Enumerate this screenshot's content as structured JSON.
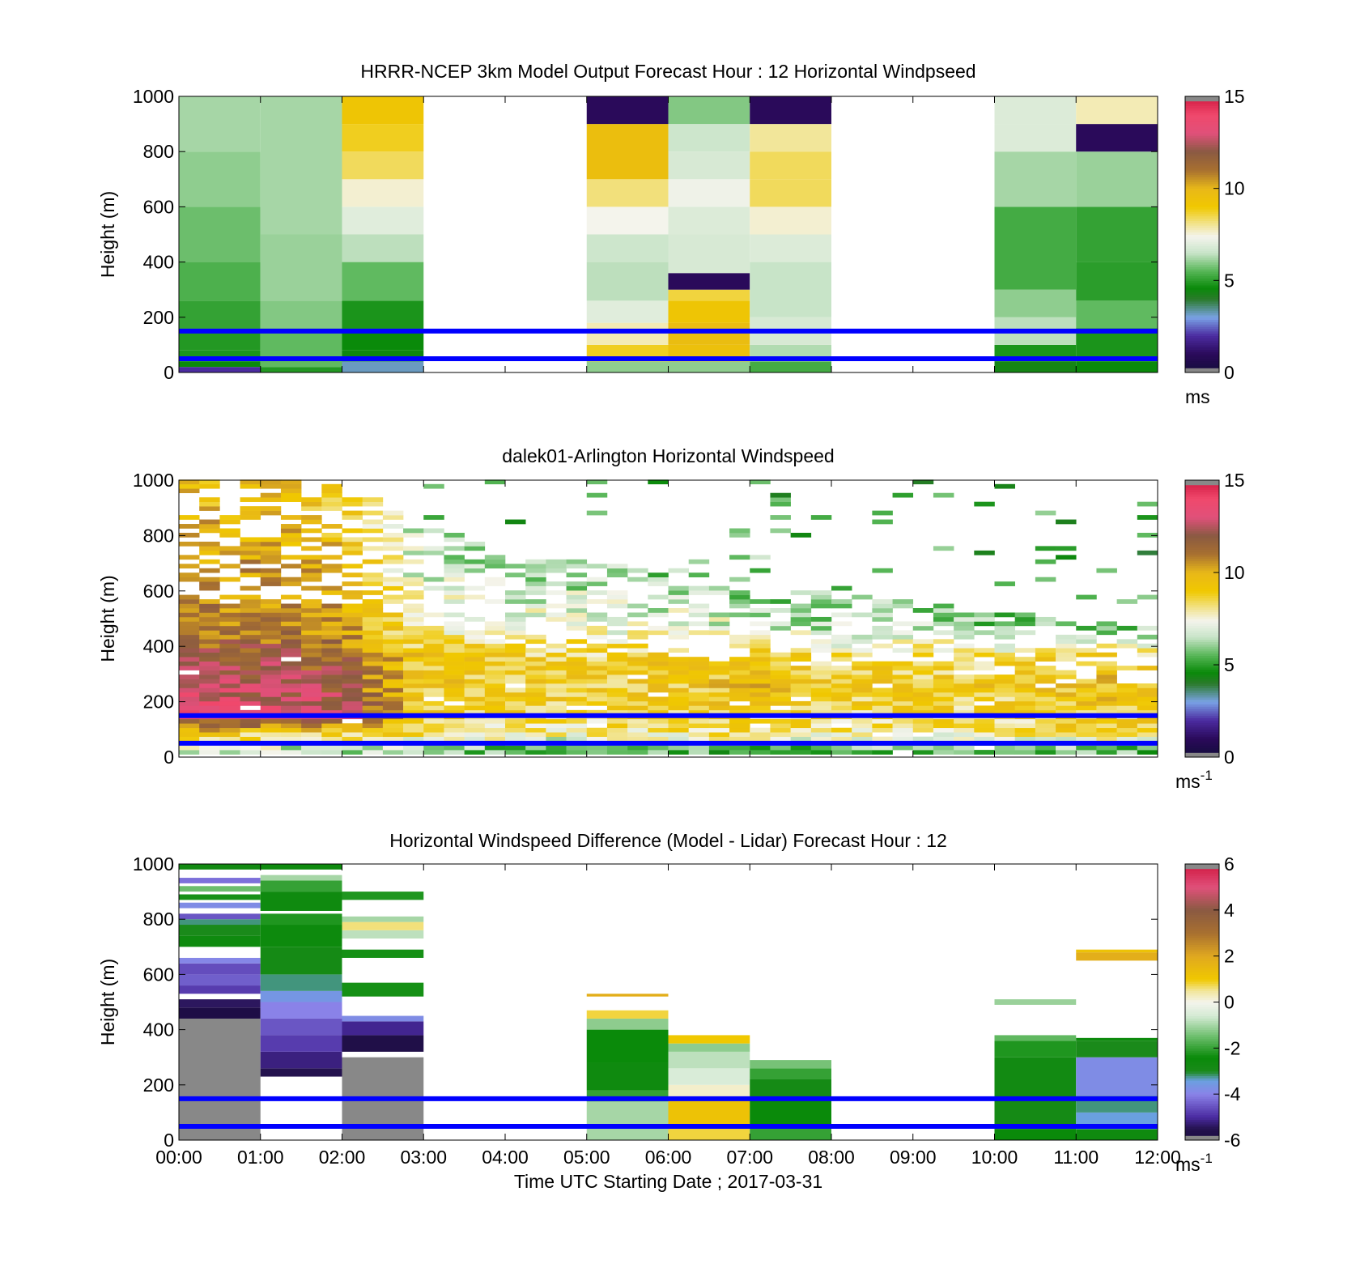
{
  "figure": {
    "xlabel": "Time UTC  Starting Date ; 2017-03-31",
    "x_ticks": [
      "00:00",
      "01:00",
      "02:00",
      "03:00",
      "04:00",
      "05:00",
      "06:00",
      "07:00",
      "08:00",
      "09:00",
      "10:00",
      "11:00",
      "12:00"
    ],
    "y_ticks": [
      "0",
      "200",
      "400",
      "600",
      "800",
      "1000"
    ],
    "ylabel": "Height (m)",
    "reference_lines_m": [
      50,
      150
    ],
    "reference_line_color": "#0000ff"
  },
  "chart_data": [
    {
      "id": "model",
      "type": "heatmap",
      "title": "HRRR-NCEP 3km Model Output   Forecast Hour : 12 Horizontal Windpseed",
      "xlabel": "",
      "ylabel": "Height (m)",
      "xlim_hours": [
        0,
        12
      ],
      "ylim": [
        0,
        1000
      ],
      "colorbar": {
        "ticks": [
          "0",
          "5",
          "10",
          "15"
        ],
        "min": 0,
        "max": 15,
        "unit": "ms",
        "colormap": "windspeed"
      },
      "columns": [
        {
          "start": 0,
          "end": 1,
          "layers": [
            [
              0,
              20,
              2
            ],
            [
              20,
              40,
              4.6
            ],
            [
              40,
              80,
              4.8
            ],
            [
              80,
              160,
              4.9
            ],
            [
              160,
              260,
              5.1
            ],
            [
              260,
              400,
              5.4
            ],
            [
              400,
              600,
              5.7
            ],
            [
              600,
              800,
              6.0
            ],
            [
              800,
              1000,
              6.2
            ]
          ]
        },
        {
          "start": 1,
          "end": 2,
          "layers": [
            [
              0,
              20,
              4.9
            ],
            [
              20,
              160,
              5.6
            ],
            [
              160,
              260,
              5.9
            ],
            [
              260,
              500,
              6.1
            ],
            [
              500,
              1000,
              6.2
            ]
          ]
        },
        {
          "start": 2,
          "end": 3,
          "layers": [
            [
              0,
              40,
              3.2
            ],
            [
              40,
              80,
              4.5
            ],
            [
              80,
              160,
              4.6
            ],
            [
              160,
              260,
              4.8
            ],
            [
              260,
              400,
              5.6
            ],
            [
              400,
              500,
              6.4
            ],
            [
              500,
              600,
              7.0
            ],
            [
              600,
              700,
              7.6
            ],
            [
              700,
              800,
              8.4
            ],
            [
              800,
              900,
              8.8
            ],
            [
              900,
              1000,
              9.2
            ]
          ]
        },
        {
          "start": 5,
          "end": 6,
          "layers": [
            [
              0,
              40,
              6.0
            ],
            [
              40,
              100,
              8.8
            ],
            [
              100,
              180,
              7.8
            ],
            [
              180,
              260,
              7.0
            ],
            [
              260,
              400,
              6.4
            ],
            [
              400,
              500,
              6.6
            ],
            [
              500,
              600,
              7.4
            ],
            [
              600,
              700,
              8.2
            ],
            [
              700,
              900,
              9.6
            ],
            [
              900,
              1000,
              1.0
            ]
          ]
        },
        {
          "start": 6,
          "end": 7,
          "layers": [
            [
              0,
              40,
              6.0
            ],
            [
              40,
              100,
              9.5
            ],
            [
              100,
              180,
              9.7
            ],
            [
              180,
              260,
              9.2
            ],
            [
              260,
              300,
              8.6
            ],
            [
              300,
              360,
              1.0
            ],
            [
              360,
              500,
              6.8
            ],
            [
              500,
              600,
              6.9
            ],
            [
              600,
              700,
              7.3
            ],
            [
              700,
              800,
              6.8
            ],
            [
              800,
              900,
              6.6
            ],
            [
              900,
              1000,
              5.9
            ]
          ]
        },
        {
          "start": 7,
          "end": 8,
          "layers": [
            [
              0,
              40,
              5.3
            ],
            [
              40,
              100,
              6.3
            ],
            [
              100,
              200,
              6.8
            ],
            [
              200,
              400,
              6.5
            ],
            [
              400,
              500,
              6.9
            ],
            [
              500,
              600,
              7.6
            ],
            [
              600,
              700,
              8.4
            ],
            [
              700,
              800,
              8.4
            ],
            [
              800,
              900,
              8.0
            ],
            [
              900,
              1000,
              1.0
            ]
          ]
        },
        {
          "start": 10,
          "end": 11,
          "layers": [
            [
              0,
              40,
              4.4
            ],
            [
              40,
              100,
              4.8
            ],
            [
              100,
              200,
              6.4
            ],
            [
              200,
              300,
              6.0
            ],
            [
              300,
              600,
              5.3
            ],
            [
              600,
              800,
              6.2
            ],
            [
              800,
              900,
              6.9
            ],
            [
              900,
              1000,
              6.9
            ]
          ]
        },
        {
          "start": 11,
          "end": 12,
          "layers": [
            [
              0,
              40,
              4.6
            ],
            [
              40,
              160,
              4.8
            ],
            [
              160,
              260,
              5.6
            ],
            [
              260,
              400,
              5.0
            ],
            [
              400,
              600,
              5.1
            ],
            [
              600,
              800,
              6.1
            ],
            [
              800,
              900,
              1.0
            ],
            [
              900,
              1000,
              7.8
            ]
          ]
        }
      ]
    },
    {
      "id": "lidar",
      "type": "heatmap",
      "title": "dalek01-Arlington  Horizontal Windspeed",
      "xlabel": "",
      "ylabel": "Height (m)",
      "xlim_hours": [
        0,
        12
      ],
      "ylim": [
        0,
        1000
      ],
      "colorbar": {
        "ticks": [
          "0",
          "5",
          "10",
          "15"
        ],
        "min": 0,
        "max": 15,
        "unit": "ms-1",
        "colormap": "windspeed"
      },
      "profile_hours": [
        0,
        1,
        2,
        3,
        4,
        5,
        6,
        7,
        8,
        9,
        10,
        11,
        11.85
      ],
      "profile_windspeed": [
        [
          6.5,
          9,
          13.5,
          13,
          12,
          11,
          10.5,
          10,
          9.5
        ],
        [
          6.5,
          9,
          13,
          12.5,
          12,
          11,
          10.5,
          10,
          9.5
        ],
        [
          6.5,
          9,
          13,
          12,
          11.5,
          10.5,
          10,
          9.5,
          9
        ],
        [
          6,
          8.5,
          8.8,
          9,
          9,
          8,
          7,
          6,
          5.5
        ],
        [
          5.5,
          8,
          8.5,
          9,
          9,
          8,
          6.5,
          5.5,
          5
        ],
        [
          5.5,
          8,
          8.5,
          9,
          8.5,
          7.5,
          6.5,
          5.5,
          5
        ],
        [
          5.5,
          8,
          8.5,
          9,
          9,
          7.5,
          6,
          5.5,
          5
        ],
        [
          5.5,
          8.5,
          9,
          9.5,
          9,
          7,
          6,
          5.5,
          5
        ],
        [
          5.5,
          8,
          8.5,
          9,
          8.5,
          6.5,
          5.5,
          5,
          5
        ],
        [
          5.5,
          8,
          8.5,
          9,
          8.5,
          6.5,
          5.5,
          5,
          5
        ],
        [
          5.5,
          8,
          8.5,
          9,
          8.5,
          6,
          5,
          5,
          5
        ],
        [
          5.5,
          8.5,
          9,
          9.5,
          9,
          6,
          5,
          5,
          5
        ],
        [
          5.5,
          8.5,
          9,
          9.5,
          9,
          6,
          5,
          5,
          5
        ]
      ],
      "profile_heights_m": [
        20,
        80,
        140,
        250,
        350,
        450,
        600,
        800,
        950
      ],
      "max_height_by_hour": [
        1000,
        1000,
        1000,
        880,
        720,
        700,
        660,
        580,
        600,
        560,
        520,
        500,
        460
      ]
    },
    {
      "id": "difference",
      "type": "heatmap",
      "title": "Horizontal Windspeed Difference (Model - Lidar) Forecast Hour : 12",
      "xlabel": "Time UTC  Starting Date ; 2017-03-31",
      "ylabel": "Height (m)",
      "xlim_hours": [
        0,
        12
      ],
      "ylim": [
        0,
        1000
      ],
      "colorbar": {
        "ticks": [
          "-6",
          "-4",
          "-2",
          "0",
          "2",
          "4",
          "6"
        ],
        "min": -6,
        "max": 6,
        "unit": "ms-1",
        "colormap": "difference"
      },
      "columns": [
        {
          "start": 0,
          "end": 1,
          "layers": [
            [
              0,
              440,
              -7
            ],
            [
              440,
              480,
              -5.8
            ],
            [
              480,
              510,
              -5.4
            ],
            [
              530,
              560,
              -4.8
            ],
            [
              560,
              600,
              -4.4
            ],
            [
              600,
              640,
              -4.6
            ],
            [
              640,
              660,
              -3.9
            ],
            [
              700,
              740,
              -2.6
            ],
            [
              740,
              780,
              -3.0
            ],
            [
              780,
              800,
              -3.2
            ],
            [
              800,
              820,
              -4.5
            ],
            [
              840,
              860,
              -3.8
            ],
            [
              870,
              890,
              -2.3
            ],
            [
              900,
              920,
              -1.5
            ],
            [
              930,
              950,
              -4.2
            ],
            [
              980,
              1000,
              -2.7
            ]
          ]
        },
        {
          "start": 1,
          "end": 2,
          "layers": [
            [
              230,
              260,
              -5.5
            ],
            [
              260,
              320,
              -5.2
            ],
            [
              320,
              380,
              -4.8
            ],
            [
              380,
              440,
              -4.5
            ],
            [
              440,
              500,
              -4.0
            ],
            [
              500,
              540,
              -3.6
            ],
            [
              540,
              600,
              -3.2
            ],
            [
              600,
              700,
              -2.8
            ],
            [
              700,
              780,
              -2.5
            ],
            [
              780,
              820,
              -2.2
            ],
            [
              830,
              900,
              -2.6
            ],
            [
              900,
              940,
              -2.0
            ],
            [
              940,
              960,
              -1.0
            ],
            [
              980,
              1000,
              -2.6
            ]
          ]
        },
        {
          "start": 2,
          "end": 3,
          "layers": [
            [
              0,
              300,
              -7
            ],
            [
              320,
              380,
              -5.7
            ],
            [
              380,
              430,
              -5.1
            ],
            [
              430,
              450,
              -3.8
            ],
            [
              520,
              570,
              -2.3
            ],
            [
              660,
              690,
              -2.3
            ],
            [
              730,
              760,
              -0.8
            ],
            [
              760,
              790,
              0.6
            ],
            [
              790,
              810,
              -1.0
            ],
            [
              870,
              900,
              -2.2
            ]
          ]
        },
        {
          "start": 5,
          "end": 6,
          "layers": [
            [
              0,
              140,
              -1.0
            ],
            [
              140,
              180,
              -2.0
            ],
            [
              180,
              280,
              -2.6
            ],
            [
              280,
              400,
              -2.4
            ],
            [
              400,
              440,
              -1.2
            ],
            [
              440,
              470,
              0.8
            ],
            [
              520,
              530,
              1.8
            ]
          ]
        },
        {
          "start": 6,
          "end": 7,
          "layers": [
            [
              0,
              40,
              0.8
            ],
            [
              40,
              150,
              1.2
            ],
            [
              150,
              200,
              0.2
            ],
            [
              200,
              260,
              -0.5
            ],
            [
              260,
              320,
              -0.8
            ],
            [
              320,
              350,
              -1.2
            ],
            [
              350,
              380,
              1.0
            ]
          ]
        },
        {
          "start": 7,
          "end": 8,
          "layers": [
            [
              0,
              40,
              -2.0
            ],
            [
              40,
              150,
              -2.4
            ],
            [
              150,
              220,
              -2.8
            ],
            [
              220,
              260,
              -2.0
            ],
            [
              260,
              290,
              -1.4
            ]
          ]
        },
        {
          "start": 10,
          "end": 11,
          "layers": [
            [
              0,
              40,
              -2.4
            ],
            [
              40,
              150,
              -2.8
            ],
            [
              150,
              300,
              -2.7
            ],
            [
              300,
              360,
              -2.2
            ],
            [
              360,
              380,
              -1.6
            ],
            [
              490,
              510,
              -1.1
            ]
          ]
        },
        {
          "start": 11,
          "end": 12,
          "layers": [
            [
              0,
              40,
              -2.6
            ],
            [
              40,
              100,
              -3.4
            ],
            [
              100,
              160,
              -3.2
            ],
            [
              160,
              300,
              -3.8
            ],
            [
              300,
              360,
              -3.0
            ],
            [
              360,
              370,
              -2.5
            ],
            [
              650,
              680,
              1.8
            ],
            [
              680,
              690,
              1.2
            ]
          ]
        }
      ]
    }
  ]
}
